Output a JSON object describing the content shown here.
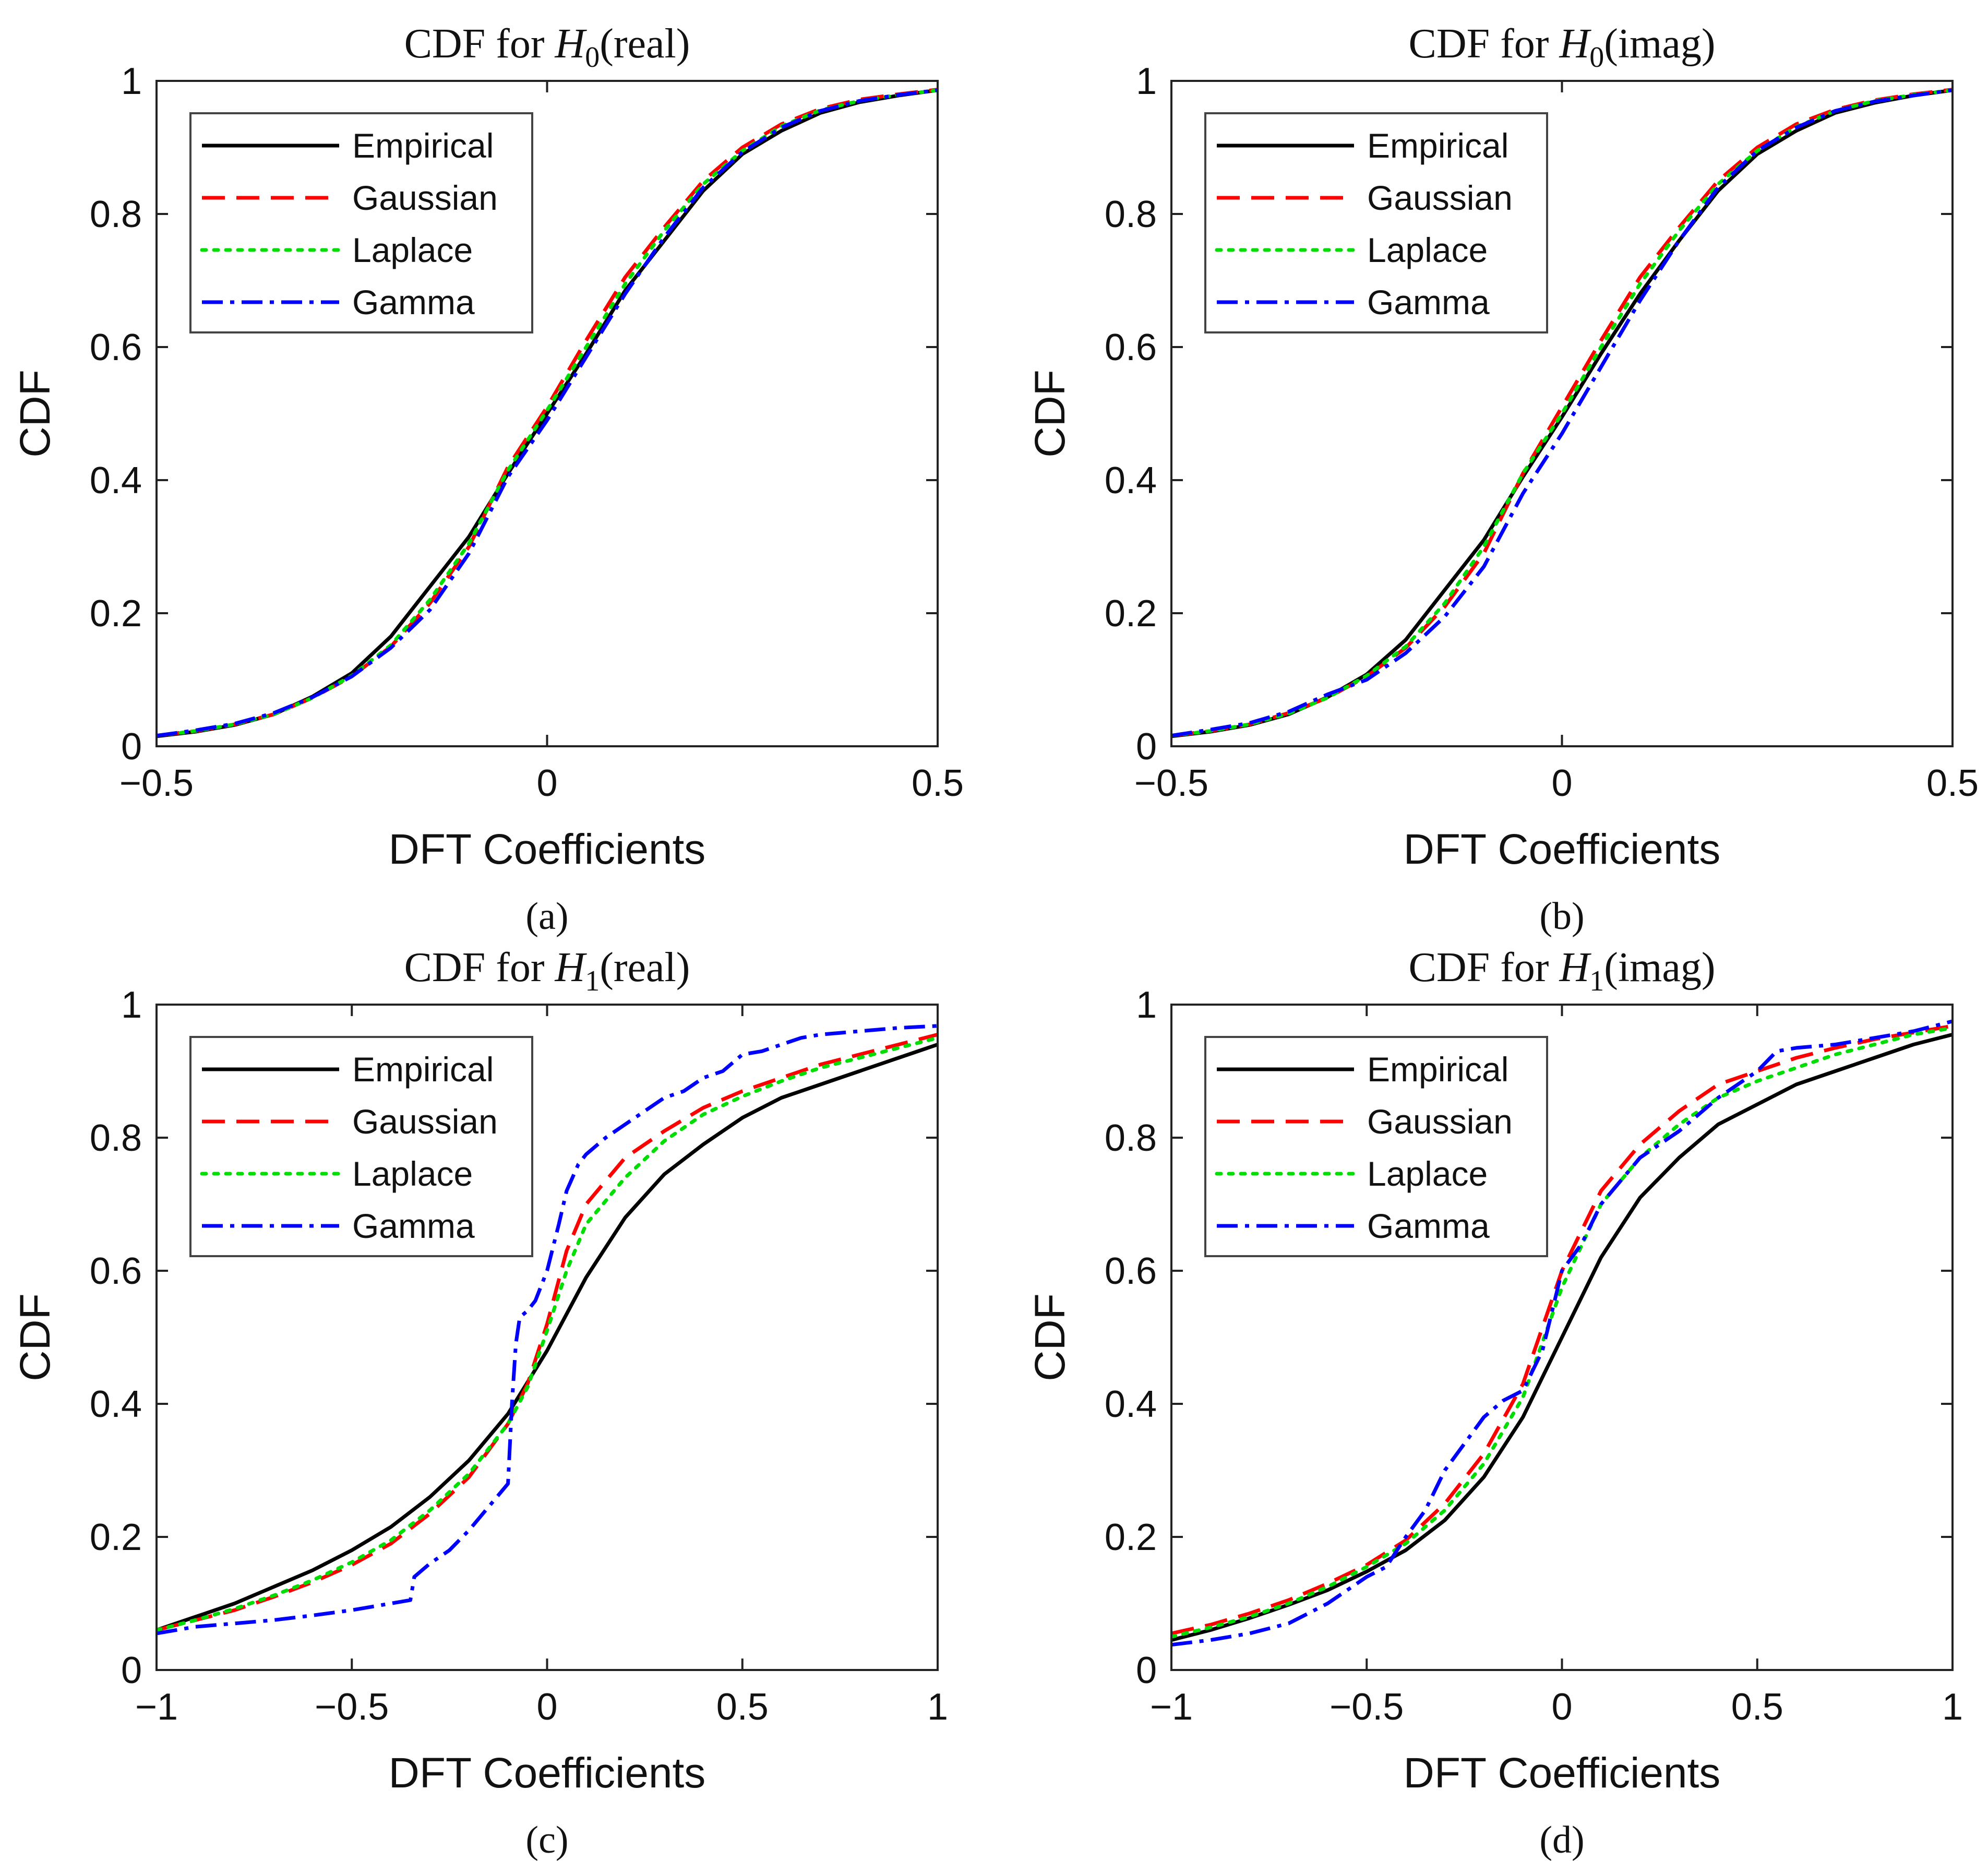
{
  "chart_data": [
    {
      "type": "line",
      "title": {
        "prefix": "CDF for ",
        "var": "H",
        "sub": "0",
        "suffix": "(real)"
      },
      "caption": "(a)",
      "xlabel": "DFT Coefficients",
      "ylabel": "CDF",
      "xlim": [
        -0.5,
        0.5
      ],
      "ylim": [
        0,
        1
      ],
      "xticks": [
        -0.5,
        0,
        0.5
      ],
      "xtick_labels": [
        "−0.5",
        "0",
        "0.5"
      ],
      "yticks": [
        0,
        0.2,
        0.4,
        0.6,
        0.8,
        1
      ],
      "ytick_labels": [
        "0",
        "0.2",
        "0.4",
        "0.6",
        "0.8",
        "1"
      ],
      "grid": false,
      "legend_position": "top-left",
      "series": [
        {
          "name": "Empirical",
          "color": "#000000",
          "style": "solid",
          "x": [
            -0.5,
            -0.45,
            -0.4,
            -0.35,
            -0.3,
            -0.25,
            -0.2,
            -0.15,
            -0.1,
            -0.05,
            0,
            0.05,
            0.1,
            0.15,
            0.2,
            0.25,
            0.3,
            0.35,
            0.4,
            0.45,
            0.5
          ],
          "y": [
            0.015,
            0.022,
            0.032,
            0.048,
            0.075,
            0.11,
            0.165,
            0.24,
            0.315,
            0.41,
            0.5,
            0.59,
            0.685,
            0.76,
            0.835,
            0.89,
            0.925,
            0.952,
            0.968,
            0.978,
            0.986
          ]
        },
        {
          "name": "Gaussian",
          "color": "#ff0000",
          "style": "dashed",
          "x": [
            -0.5,
            -0.45,
            -0.4,
            -0.35,
            -0.3,
            -0.25,
            -0.2,
            -0.15,
            -0.1,
            -0.05,
            0,
            0.05,
            0.1,
            0.15,
            0.2,
            0.25,
            0.3,
            0.35,
            0.4,
            0.45,
            0.5
          ],
          "y": [
            0.016,
            0.023,
            0.033,
            0.048,
            0.073,
            0.105,
            0.15,
            0.215,
            0.3,
            0.42,
            0.51,
            0.61,
            0.705,
            0.78,
            0.85,
            0.9,
            0.935,
            0.958,
            0.972,
            0.98,
            0.987
          ]
        },
        {
          "name": "Laplace",
          "color": "#00dd00",
          "style": "dotted",
          "x": [
            -0.5,
            -0.45,
            -0.4,
            -0.35,
            -0.3,
            -0.25,
            -0.2,
            -0.15,
            -0.1,
            -0.05,
            0,
            0.05,
            0.1,
            0.15,
            0.2,
            0.25,
            0.3,
            0.35,
            0.4,
            0.45,
            0.5
          ],
          "y": [
            0.016,
            0.023,
            0.033,
            0.048,
            0.073,
            0.106,
            0.152,
            0.22,
            0.305,
            0.415,
            0.505,
            0.6,
            0.695,
            0.775,
            0.845,
            0.895,
            0.932,
            0.956,
            0.97,
            0.979,
            0.986
          ]
        },
        {
          "name": "Gamma",
          "color": "#0000ff",
          "style": "dashdot",
          "x": [
            -0.5,
            -0.45,
            -0.4,
            -0.35,
            -0.3,
            -0.25,
            -0.2,
            -0.15,
            -0.1,
            -0.05,
            0,
            0.05,
            0.1,
            0.15,
            0.2,
            0.25,
            0.3,
            0.35,
            0.4,
            0.45,
            0.5
          ],
          "y": [
            0.016,
            0.024,
            0.034,
            0.05,
            0.074,
            0.105,
            0.148,
            0.205,
            0.29,
            0.405,
            0.49,
            0.585,
            0.68,
            0.765,
            0.84,
            0.893,
            0.93,
            0.955,
            0.97,
            0.979,
            0.986
          ]
        }
      ]
    },
    {
      "type": "line",
      "title": {
        "prefix": "CDF for ",
        "var": "H",
        "sub": "0",
        "suffix": "(imag)"
      },
      "caption": "(b)",
      "xlabel": "DFT Coefficients",
      "ylabel": "CDF",
      "xlim": [
        -0.5,
        0.5
      ],
      "ylim": [
        0,
        1
      ],
      "xticks": [
        -0.5,
        0,
        0.5
      ],
      "xtick_labels": [
        "−0.5",
        "0",
        "0.5"
      ],
      "yticks": [
        0,
        0.2,
        0.4,
        0.6,
        0.8,
        1
      ],
      "ytick_labels": [
        "0",
        "0.2",
        "0.4",
        "0.6",
        "0.8",
        "1"
      ],
      "grid": false,
      "legend_position": "top-left",
      "series": [
        {
          "name": "Empirical",
          "color": "#000000",
          "style": "solid",
          "x": [
            -0.5,
            -0.45,
            -0.4,
            -0.35,
            -0.3,
            -0.25,
            -0.2,
            -0.15,
            -0.1,
            -0.05,
            0,
            0.05,
            0.1,
            0.15,
            0.2,
            0.25,
            0.3,
            0.35,
            0.4,
            0.45,
            0.5
          ],
          "y": [
            0.015,
            0.022,
            0.032,
            0.048,
            0.074,
            0.108,
            0.16,
            0.235,
            0.31,
            0.405,
            0.495,
            0.59,
            0.68,
            0.76,
            0.835,
            0.89,
            0.925,
            0.952,
            0.967,
            0.978,
            0.986
          ]
        },
        {
          "name": "Gaussian",
          "color": "#ff0000",
          "style": "dashed",
          "x": [
            -0.5,
            -0.45,
            -0.4,
            -0.35,
            -0.3,
            -0.25,
            -0.2,
            -0.15,
            -0.1,
            -0.05,
            0,
            0.05,
            0.1,
            0.15,
            0.2,
            0.25,
            0.3,
            0.35,
            0.4,
            0.45,
            0.5
          ],
          "y": [
            0.016,
            0.023,
            0.033,
            0.05,
            0.073,
            0.105,
            0.148,
            0.21,
            0.29,
            0.41,
            0.51,
            0.61,
            0.705,
            0.78,
            0.85,
            0.9,
            0.935,
            0.957,
            0.971,
            0.98,
            0.987
          ]
        },
        {
          "name": "Laplace",
          "color": "#00dd00",
          "style": "dotted",
          "x": [
            -0.5,
            -0.45,
            -0.4,
            -0.35,
            -0.3,
            -0.25,
            -0.2,
            -0.15,
            -0.1,
            -0.05,
            0,
            0.05,
            0.1,
            0.15,
            0.2,
            0.25,
            0.3,
            0.35,
            0.4,
            0.45,
            0.5
          ],
          "y": [
            0.016,
            0.023,
            0.033,
            0.049,
            0.073,
            0.106,
            0.15,
            0.215,
            0.3,
            0.41,
            0.5,
            0.6,
            0.695,
            0.775,
            0.845,
            0.895,
            0.931,
            0.955,
            0.97,
            0.979,
            0.986
          ]
        },
        {
          "name": "Gamma",
          "color": "#0000ff",
          "style": "dashdot",
          "x": [
            -0.5,
            -0.45,
            -0.4,
            -0.35,
            -0.3,
            -0.25,
            -0.2,
            -0.15,
            -0.1,
            -0.05,
            0,
            0.05,
            0.1,
            0.15,
            0.2,
            0.25,
            0.3,
            0.35,
            0.4,
            0.45,
            0.5
          ],
          "y": [
            0.016,
            0.025,
            0.035,
            0.052,
            0.078,
            0.1,
            0.14,
            0.195,
            0.27,
            0.38,
            0.47,
            0.57,
            0.67,
            0.76,
            0.84,
            0.895,
            0.93,
            0.955,
            0.969,
            0.978,
            0.986
          ]
        }
      ]
    },
    {
      "type": "line",
      "title": {
        "prefix": "CDF for ",
        "var": "H",
        "sub": "1",
        "suffix": "(real)"
      },
      "caption": "(c)",
      "xlabel": "DFT Coefficients",
      "ylabel": "CDF",
      "xlim": [
        -1,
        1
      ],
      "ylim": [
        0,
        1
      ],
      "xticks": [
        -1,
        -0.5,
        0,
        0.5,
        1
      ],
      "xtick_labels": [
        "−1",
        "−0.5",
        "0",
        "0.5",
        "1"
      ],
      "yticks": [
        0,
        0.2,
        0.4,
        0.6,
        0.8,
        1
      ],
      "ytick_labels": [
        "0",
        "0.2",
        "0.4",
        "0.6",
        "0.8",
        "1"
      ],
      "grid": false,
      "legend_position": "top-left",
      "series": [
        {
          "name": "Empirical",
          "color": "#000000",
          "style": "solid",
          "x": [
            -1,
            -0.9,
            -0.8,
            -0.7,
            -0.6,
            -0.5,
            -0.4,
            -0.3,
            -0.2,
            -0.1,
            0,
            0.1,
            0.2,
            0.3,
            0.4,
            0.5,
            0.6,
            0.7,
            0.8,
            0.9,
            1
          ],
          "y": [
            0.06,
            0.08,
            0.1,
            0.125,
            0.15,
            0.18,
            0.215,
            0.26,
            0.315,
            0.385,
            0.48,
            0.59,
            0.68,
            0.745,
            0.79,
            0.83,
            0.86,
            0.88,
            0.9,
            0.92,
            0.94
          ]
        },
        {
          "name": "Gaussian",
          "color": "#ff0000",
          "style": "dashed",
          "x": [
            -1,
            -0.9,
            -0.8,
            -0.7,
            -0.6,
            -0.5,
            -0.4,
            -0.3,
            -0.2,
            -0.1,
            -0.05,
            0,
            0.05,
            0.1,
            0.2,
            0.3,
            0.4,
            0.5,
            0.6,
            0.7,
            0.8,
            0.9,
            1
          ],
          "y": [
            0.06,
            0.075,
            0.09,
            0.11,
            0.132,
            0.158,
            0.19,
            0.235,
            0.29,
            0.37,
            0.43,
            0.52,
            0.63,
            0.7,
            0.77,
            0.81,
            0.845,
            0.87,
            0.89,
            0.91,
            0.925,
            0.94,
            0.955
          ]
        },
        {
          "name": "Laplace",
          "color": "#00dd00",
          "style": "dotted",
          "x": [
            -1,
            -0.9,
            -0.8,
            -0.7,
            -0.6,
            -0.5,
            -0.4,
            -0.3,
            -0.2,
            -0.1,
            -0.05,
            0,
            0.05,
            0.1,
            0.2,
            0.3,
            0.4,
            0.5,
            0.6,
            0.7,
            0.8,
            0.9,
            1
          ],
          "y": [
            0.06,
            0.075,
            0.092,
            0.112,
            0.135,
            0.162,
            0.195,
            0.24,
            0.295,
            0.37,
            0.425,
            0.51,
            0.6,
            0.67,
            0.74,
            0.795,
            0.835,
            0.862,
            0.885,
            0.905,
            0.92,
            0.935,
            0.95
          ]
        },
        {
          "name": "Gamma",
          "color": "#0000ff",
          "style": "dashdot",
          "x": [
            -1,
            -0.9,
            -0.8,
            -0.7,
            -0.6,
            -0.5,
            -0.45,
            -0.4,
            -0.35,
            -0.34,
            -0.3,
            -0.25,
            -0.2,
            -0.15,
            -0.1,
            -0.09,
            -0.08,
            -0.07,
            -0.05,
            -0.03,
            0,
            0.03,
            0.05,
            0.08,
            0.1,
            0.15,
            0.2,
            0.25,
            0.3,
            0.35,
            0.4,
            0.45,
            0.5,
            0.55,
            0.6,
            0.65,
            0.7,
            0.8,
            0.9,
            1
          ],
          "y": [
            0.055,
            0.065,
            0.07,
            0.075,
            0.082,
            0.09,
            0.095,
            0.1,
            0.105,
            0.14,
            0.16,
            0.18,
            0.21,
            0.245,
            0.28,
            0.4,
            0.49,
            0.53,
            0.54,
            0.555,
            0.6,
            0.67,
            0.72,
            0.76,
            0.775,
            0.8,
            0.82,
            0.84,
            0.86,
            0.87,
            0.89,
            0.9,
            0.925,
            0.93,
            0.94,
            0.95,
            0.955,
            0.96,
            0.965,
            0.968
          ]
        }
      ]
    },
    {
      "type": "line",
      "title": {
        "prefix": "CDF for ",
        "var": "H",
        "sub": "1",
        "suffix": "(imag)"
      },
      "caption": "(d)",
      "xlabel": "DFT Coefficients",
      "ylabel": "CDF",
      "xlim": [
        -1,
        1
      ],
      "ylim": [
        0,
        1
      ],
      "xticks": [
        -1,
        -0.5,
        0,
        0.5,
        1
      ],
      "xtick_labels": [
        "−1",
        "−0.5",
        "0",
        "0.5",
        "1"
      ],
      "yticks": [
        0,
        0.2,
        0.4,
        0.6,
        0.8,
        1
      ],
      "ytick_labels": [
        "0",
        "0.2",
        "0.4",
        "0.6",
        "0.8",
        "1"
      ],
      "grid": false,
      "legend_position": "top-left",
      "series": [
        {
          "name": "Empirical",
          "color": "#000000",
          "style": "solid",
          "x": [
            -1,
            -0.9,
            -0.8,
            -0.7,
            -0.6,
            -0.5,
            -0.4,
            -0.3,
            -0.2,
            -0.1,
            0,
            0.1,
            0.2,
            0.3,
            0.4,
            0.5,
            0.6,
            0.7,
            0.8,
            0.9,
            1
          ],
          "y": [
            0.045,
            0.06,
            0.078,
            0.098,
            0.12,
            0.148,
            0.18,
            0.225,
            0.29,
            0.38,
            0.5,
            0.62,
            0.71,
            0.77,
            0.82,
            0.85,
            0.88,
            0.9,
            0.92,
            0.94,
            0.955
          ]
        },
        {
          "name": "Gaussian",
          "color": "#ff0000",
          "style": "dashed",
          "x": [
            -1,
            -0.9,
            -0.8,
            -0.7,
            -0.6,
            -0.5,
            -0.4,
            -0.3,
            -0.2,
            -0.1,
            0,
            0.1,
            0.2,
            0.3,
            0.4,
            0.5,
            0.6,
            0.7,
            0.8,
            0.9,
            1
          ],
          "y": [
            0.055,
            0.068,
            0.085,
            0.105,
            0.13,
            0.158,
            0.195,
            0.25,
            0.325,
            0.43,
            0.6,
            0.72,
            0.79,
            0.84,
            0.88,
            0.9,
            0.92,
            0.935,
            0.948,
            0.958,
            0.968
          ]
        },
        {
          "name": "Laplace",
          "color": "#00dd00",
          "style": "dotted",
          "x": [
            -1,
            -0.9,
            -0.8,
            -0.7,
            -0.6,
            -0.5,
            -0.4,
            -0.3,
            -0.2,
            -0.1,
            0,
            0.1,
            0.2,
            0.3,
            0.4,
            0.5,
            0.6,
            0.7,
            0.8,
            0.9,
            1
          ],
          "y": [
            0.05,
            0.064,
            0.08,
            0.1,
            0.125,
            0.155,
            0.19,
            0.24,
            0.31,
            0.41,
            0.575,
            0.7,
            0.77,
            0.82,
            0.86,
            0.885,
            0.905,
            0.925,
            0.94,
            0.955,
            0.965
          ]
        },
        {
          "name": "Gamma",
          "color": "#0000ff",
          "style": "dashdot",
          "x": [
            -1,
            -0.9,
            -0.8,
            -0.7,
            -0.6,
            -0.5,
            -0.45,
            -0.4,
            -0.35,
            -0.3,
            -0.25,
            -0.2,
            -0.15,
            -0.1,
            -0.05,
            0,
            0.05,
            0.1,
            0.2,
            0.3,
            0.4,
            0.5,
            0.55,
            0.6,
            0.7,
            0.8,
            0.9,
            1
          ],
          "y": [
            0.038,
            0.045,
            0.055,
            0.07,
            0.1,
            0.14,
            0.155,
            0.2,
            0.24,
            0.3,
            0.34,
            0.38,
            0.405,
            0.42,
            0.48,
            0.6,
            0.64,
            0.7,
            0.77,
            0.81,
            0.86,
            0.9,
            0.93,
            0.935,
            0.94,
            0.95,
            0.96,
            0.975
          ]
        }
      ]
    }
  ]
}
